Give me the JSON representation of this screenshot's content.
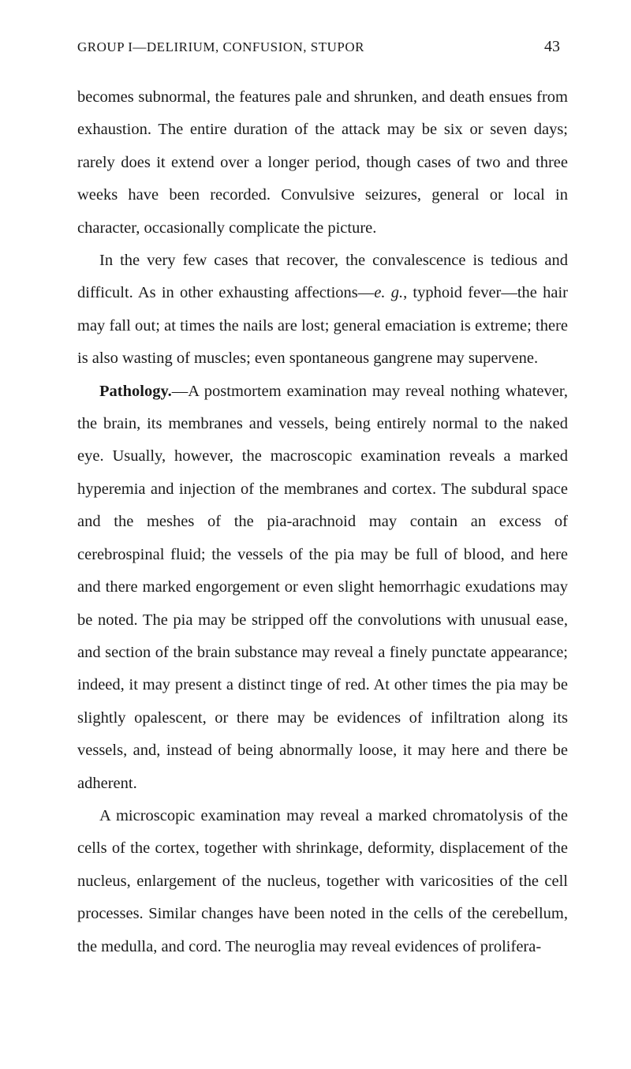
{
  "header": {
    "title": "GROUP I—DELIRIUM, CONFUSION, STUPOR",
    "page_number": "43"
  },
  "paragraphs": {
    "p1": "becomes subnormal, the features pale and shrunken, and death ensues from exhaustion. The entire duration of the attack may be six or seven days; rarely does it extend over a longer period, though cases of two and three weeks have been recorded. Convulsive seizures, general or local in character, occasionally complicate the picture.",
    "p2_part1": "In the very few cases that recover, the convalescence is tedious and difficult. As in other exhausting affections—",
    "p2_italic": "e. g.",
    "p2_part2": ", typhoid fever—the hair may fall out; at times the nails are lost; general emaciation is extreme; there is also wasting of muscles; even spontaneous gangrene may supervene.",
    "p3_bold": "Pathology.",
    "p3_text": "—A postmortem examination may reveal nothing whatever, the brain, its membranes and vessels, being entirely normal to the naked eye. Usually, however, the macroscopic examination reveals a marked hyperemia and injection of the membranes and cortex. The subdural space and the meshes of the pia-arachnoid may contain an excess of cerebrospinal fluid; the vessels of the pia may be full of blood, and here and there marked engorgement or even slight hemorrhagic exudations may be noted. The pia may be stripped off the convolutions with unusual ease, and section of the brain substance may reveal a finely punctate appearance; indeed, it may present a distinct tinge of red. At other times the pia may be slightly opalescent, or there may be evidences of infiltration along its vessels, and, instead of being abnormally loose, it may here and there be adherent.",
    "p4": "A microscopic examination may reveal a marked chromatolysis of the cells of the cortex, together with shrinkage, deformity, displacement of the nucleus, enlargement of the nucleus, together with varicosities of the cell processes. Similar changes have been noted in the cells of the cerebellum, the medulla, and cord. The neuroglia may reveal evidences of prolifera-"
  },
  "styling": {
    "background_color": "#ffffff",
    "text_color": "#1a1a1a",
    "body_fontsize": 20.5,
    "header_fontsize": 17,
    "page_number_fontsize": 20,
    "line_height": 2.02,
    "font_family": "Georgia, Times New Roman, serif"
  }
}
